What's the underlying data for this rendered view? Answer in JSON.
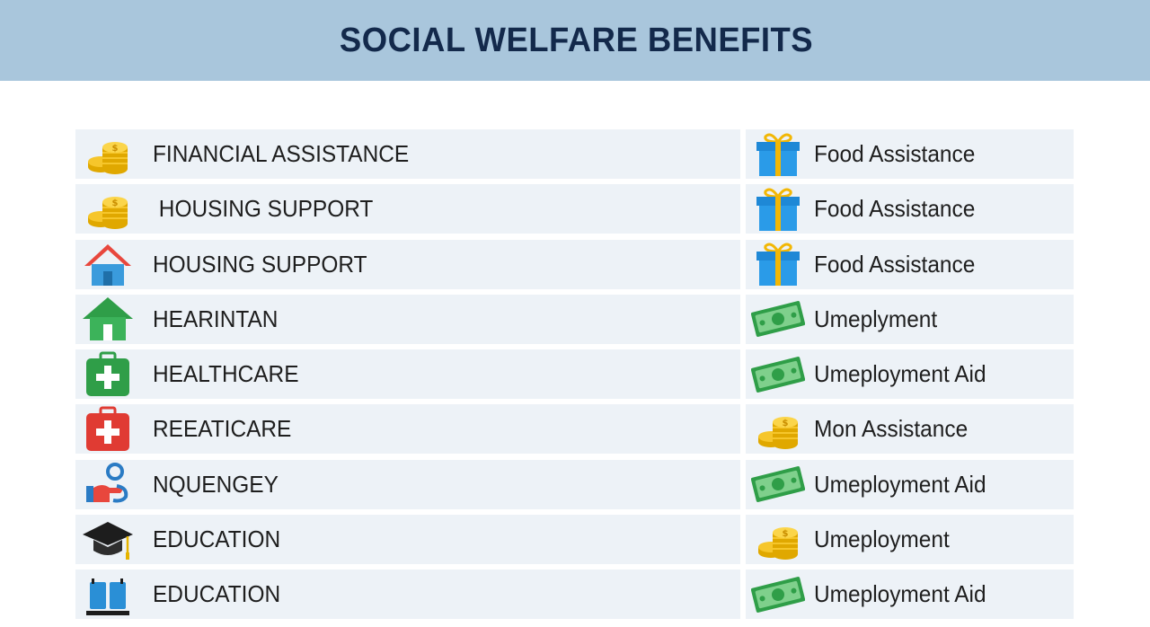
{
  "header": {
    "title": "SOCIAL WELFARE BENEFITS",
    "background": "#a9c6dc",
    "title_color": "#13294b"
  },
  "left_items": [
    {
      "label": "FINANCIAL ASSISTANCE",
      "icon": "coins-icon"
    },
    {
      "label": " HOUSING SUPPORT",
      "icon": "coins-icon"
    },
    {
      "label": "HOUSING SUPPORT",
      "icon": "house-icon"
    },
    {
      "label": "HEARINTAN",
      "icon": "green-house-icon"
    },
    {
      "label": "HEALTHCARE",
      "icon": "green-medical-kit-icon"
    },
    {
      "label": "REEATICARE",
      "icon": "red-medical-kit-icon"
    },
    {
      "label": "NQUENGEY",
      "icon": "helping-hand-icon"
    },
    {
      "label": "EDUCATION",
      "icon": "graduation-cap-icon"
    },
    {
      "label": "EDUCATION",
      "icon": "books-icon"
    }
  ],
  "right_items": [
    {
      "label": "Food Assistance",
      "icon": "gift-icon"
    },
    {
      "label": "Food Assistance",
      "icon": "gift-icon"
    },
    {
      "label": "Food Assistance",
      "icon": "gift-icon"
    },
    {
      "label": "Umeplyment",
      "icon": "banknote-icon"
    },
    {
      "label": "Umeployment Aid",
      "icon": "banknote-icon"
    },
    {
      "label": "Mon Assistance",
      "icon": "coins-icon"
    },
    {
      "label": "Umeployment Aid",
      "icon": "banknote-icon"
    },
    {
      "label": "Umeployment",
      "icon": "coins-icon"
    },
    {
      "label": "Umeployment Aid",
      "icon": "banknote-icon"
    }
  ],
  "row_color": "#edf2f7"
}
